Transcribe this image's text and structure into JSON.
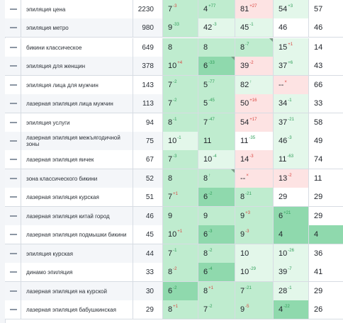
{
  "colors": {
    "top3": "#8fd9ad",
    "top10": "#bfeccf",
    "top20": "#e3f7ea",
    "top50": "#ffffff",
    "miss": "#fde3e3",
    "up": "#2e9e58",
    "down": "#d9453f"
  },
  "rows": [
    {
      "keyword": "эпиляция цена",
      "volume": "2230",
      "pos": [
        {
          "v": "7",
          "d": "-3",
          "t": "down",
          "c": "top10"
        },
        {
          "v": "4",
          "d": "+77",
          "t": "up",
          "c": "top10"
        },
        {
          "v": "81",
          "d": "+27",
          "t": "down",
          "c": "miss"
        },
        {
          "v": "54",
          "d": "+3",
          "t": "up",
          "c": "top20"
        },
        {
          "v": "57",
          "d": "",
          "t": "",
          "c": "top50"
        }
      ]
    },
    {
      "keyword": "эпиляция метро",
      "volume": "980",
      "pos": [
        {
          "v": "9",
          "d": "-33",
          "t": "up",
          "c": "top10"
        },
        {
          "v": "42",
          "d": "-3",
          "t": "up",
          "c": "top20"
        },
        {
          "v": "45",
          "d": "-1",
          "t": "up",
          "c": "top20"
        },
        {
          "v": "46",
          "d": "",
          "t": "",
          "c": "top50"
        },
        {
          "v": "46",
          "d": "",
          "t": "",
          "c": "top50"
        }
      ]
    },
    {
      "keyword": "бикини классическое",
      "volume": "649",
      "pos": [
        {
          "v": "8",
          "d": "",
          "t": "",
          "c": "top10"
        },
        {
          "v": "8",
          "d": "",
          "t": "",
          "c": "top10"
        },
        {
          "v": "8",
          "d": "-7",
          "t": "up",
          "c": "top10",
          "corner": true
        },
        {
          "v": "15",
          "d": "+1",
          "t": "down",
          "c": "top20"
        },
        {
          "v": "14",
          "d": "",
          "t": "",
          "c": "top50"
        }
      ]
    },
    {
      "keyword": "эпиляция для женщин",
      "volume": "378",
      "pos": [
        {
          "v": "10",
          "d": "+4",
          "t": "down",
          "c": "top10"
        },
        {
          "v": "6",
          "d": "-33",
          "t": "up",
          "c": "top3",
          "corner": true
        },
        {
          "v": "39",
          "d": "-2",
          "t": "down",
          "c": "miss"
        },
        {
          "v": "37",
          "d": "+6",
          "t": "up",
          "c": "top20"
        },
        {
          "v": "43",
          "d": "",
          "t": "",
          "c": "top50"
        }
      ]
    },
    {
      "keyword": "эпиляция лица для мужчин",
      "volume": "143",
      "pos": [
        {
          "v": "7",
          "d": "-2",
          "t": "up",
          "c": "top10"
        },
        {
          "v": "5",
          "d": "-77",
          "t": "up",
          "c": "top10"
        },
        {
          "v": "82",
          "d": "↑",
          "t": "up",
          "c": "top20"
        },
        {
          "v": "--",
          "d": "×",
          "t": "down",
          "c": "miss"
        },
        {
          "v": "66",
          "d": "",
          "t": "",
          "c": "top50"
        }
      ]
    },
    {
      "keyword": "лазерная эпиляция лица мужчин",
      "volume": "113",
      "pos": [
        {
          "v": "7",
          "d": "-2",
          "t": "up",
          "c": "top10"
        },
        {
          "v": "5",
          "d": "-45",
          "t": "up",
          "c": "top10"
        },
        {
          "v": "50",
          "d": "+16",
          "t": "down",
          "c": "miss"
        },
        {
          "v": "34",
          "d": "-1",
          "t": "up",
          "c": "top20"
        },
        {
          "v": "33",
          "d": "",
          "t": "",
          "c": "top50"
        }
      ]
    },
    {
      "keyword": "эпиляция услуги",
      "volume": "94",
      "pos": [
        {
          "v": "8",
          "d": "-1",
          "t": "up",
          "c": "top10"
        },
        {
          "v": "7",
          "d": "-47",
          "t": "up",
          "c": "top10"
        },
        {
          "v": "54",
          "d": "+17",
          "t": "down",
          "c": "miss"
        },
        {
          "v": "37",
          "d": "-21",
          "t": "up",
          "c": "top20"
        },
        {
          "v": "58",
          "d": "",
          "t": "",
          "c": "top50"
        }
      ]
    },
    {
      "keyword": "лазерная эпиляция межъягодичной зоны",
      "volume": "75",
      "pos": [
        {
          "v": "10",
          "d": "-1",
          "t": "up",
          "c": "top20"
        },
        {
          "v": "11",
          "d": "",
          "t": "",
          "c": "top10"
        },
        {
          "v": "11",
          "d": "-35",
          "t": "up",
          "c": "top50"
        },
        {
          "v": "46",
          "d": "-3",
          "t": "up",
          "c": "top20"
        },
        {
          "v": "49",
          "d": "",
          "t": "",
          "c": "top50"
        }
      ]
    },
    {
      "keyword": "лазерная эпиляция яичек",
      "volume": "67",
      "pos": [
        {
          "v": "7",
          "d": "-3",
          "t": "up",
          "c": "top10"
        },
        {
          "v": "10",
          "d": "-4",
          "t": "up",
          "c": "top20"
        },
        {
          "v": "14",
          "d": "-3",
          "t": "down",
          "c": "miss"
        },
        {
          "v": "11",
          "d": "-63",
          "t": "up",
          "c": "top20"
        },
        {
          "v": "74",
          "d": "",
          "t": "",
          "c": "top50"
        }
      ]
    },
    {
      "keyword": "зона классического бикини",
      "volume": "52",
      "pos": [
        {
          "v": "8",
          "d": "",
          "t": "",
          "c": "top10"
        },
        {
          "v": "8",
          "d": "↑",
          "t": "up",
          "c": "top10",
          "corner": true
        },
        {
          "v": "--",
          "d": "×",
          "t": "down",
          "c": "miss"
        },
        {
          "v": "13",
          "d": "-2",
          "t": "down",
          "c": "miss"
        },
        {
          "v": "11",
          "d": "",
          "t": "",
          "c": "top50"
        }
      ]
    },
    {
      "keyword": "лазерная эпиляция курская",
      "volume": "51",
      "pos": [
        {
          "v": "7",
          "d": "+1",
          "t": "down",
          "c": "top10"
        },
        {
          "v": "6",
          "d": "-2",
          "t": "up",
          "c": "top3"
        },
        {
          "v": "8",
          "d": "-21",
          "t": "up",
          "c": "top10"
        },
        {
          "v": "29",
          "d": "",
          "t": "",
          "c": "top50"
        },
        {
          "v": "29",
          "d": "",
          "t": "",
          "c": "top50"
        }
      ]
    },
    {
      "keyword": "лазерная эпиляция китай город",
      "volume": "46",
      "pos": [
        {
          "v": "9",
          "d": "",
          "t": "",
          "c": "top10"
        },
        {
          "v": "9",
          "d": "",
          "t": "",
          "c": "top10"
        },
        {
          "v": "9",
          "d": "+3",
          "t": "down",
          "c": "top10"
        },
        {
          "v": "6",
          "d": "+21",
          "t": "up",
          "c": "top3"
        },
        {
          "v": "29",
          "d": "",
          "t": "",
          "c": "top50"
        }
      ]
    },
    {
      "keyword": "лазерная эпиляция подмышки бикини",
      "volume": "45",
      "pos": [
        {
          "v": "10",
          "d": "+1",
          "t": "down",
          "c": "top10"
        },
        {
          "v": "6",
          "d": "-3",
          "t": "up",
          "c": "top3"
        },
        {
          "v": "9",
          "d": "-3",
          "t": "down",
          "c": "top10"
        },
        {
          "v": "4",
          "d": "",
          "t": "",
          "c": "top3"
        },
        {
          "v": "4",
          "d": "",
          "t": "",
          "c": "top3"
        }
      ]
    },
    {
      "keyword": "эпиляция курская",
      "volume": "44",
      "pos": [
        {
          "v": "7",
          "d": "-1",
          "t": "up",
          "c": "top10"
        },
        {
          "v": "8",
          "d": "-2",
          "t": "up",
          "c": "top10"
        },
        {
          "v": "10",
          "d": "",
          "t": "",
          "c": "top20"
        },
        {
          "v": "10",
          "d": "-26",
          "t": "up",
          "c": "top20"
        },
        {
          "v": "36",
          "d": "",
          "t": "",
          "c": "top50"
        }
      ]
    },
    {
      "keyword": "динамо эпиляция",
      "volume": "33",
      "pos": [
        {
          "v": "8",
          "d": "-2",
          "t": "down",
          "c": "top10"
        },
        {
          "v": "6",
          "d": "-4",
          "t": "up",
          "c": "top3"
        },
        {
          "v": "10",
          "d": "-29",
          "t": "up",
          "c": "top20"
        },
        {
          "v": "39",
          "d": "-7",
          "t": "up",
          "c": "top20"
        },
        {
          "v": "41",
          "d": "",
          "t": "",
          "c": "top50"
        }
      ]
    },
    {
      "keyword": "лазерная эпиляция на курской",
      "volume": "30",
      "pos": [
        {
          "v": "6",
          "d": "-2",
          "t": "up",
          "c": "top3"
        },
        {
          "v": "8",
          "d": "+1",
          "t": "down",
          "c": "top10"
        },
        {
          "v": "7",
          "d": "-21",
          "t": "up",
          "c": "top10"
        },
        {
          "v": "28",
          "d": "-1",
          "t": "up",
          "c": "top20"
        },
        {
          "v": "29",
          "d": "",
          "t": "",
          "c": "top50"
        }
      ]
    },
    {
      "keyword": "лазерная эпиляция бабушкинская",
      "volume": "29",
      "pos": [
        {
          "v": "8",
          "d": "+1",
          "t": "down",
          "c": "top10"
        },
        {
          "v": "7",
          "d": "-2",
          "t": "up",
          "c": "top10"
        },
        {
          "v": "9",
          "d": "-5",
          "t": "down",
          "c": "top10"
        },
        {
          "v": "4",
          "d": "-22",
          "t": "up",
          "c": "top3"
        },
        {
          "v": "26",
          "d": "",
          "t": "",
          "c": "top50"
        }
      ]
    }
  ]
}
